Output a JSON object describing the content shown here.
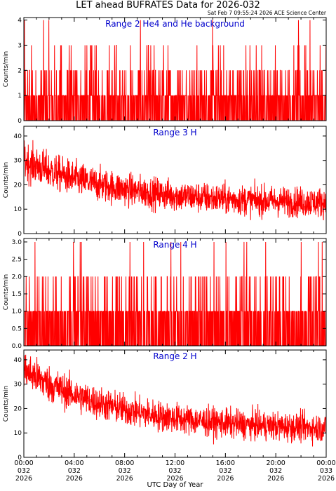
{
  "header": {
    "title": "LET ahead BUFRATES Data for 2026-032",
    "timestamp": "Sat Feb  7 09:55:24 2026 ACE Science Center"
  },
  "colors": {
    "series": "#ff0000",
    "panel_title": "#0000cc",
    "axes": "#000000"
  },
  "chart_data": [
    {
      "type": "line",
      "title": "Range 2 He4 and He background",
      "ylabel": "Counts/min",
      "ylim": [
        0,
        4.1
      ],
      "yticks": [
        {
          "v": 0,
          "label": "0"
        },
        {
          "v": 1,
          "label": "1"
        },
        {
          "v": 2,
          "label": "2"
        },
        {
          "v": 3,
          "label": "3"
        },
        {
          "v": 4,
          "label": "4"
        }
      ],
      "series": [
        {
          "color": "#ff0000",
          "profile": "discrete",
          "levels": [
            0,
            1,
            2,
            3,
            4
          ],
          "level_weights": [
            0.48,
            0.37,
            0.11,
            0.035,
            0.005
          ],
          "approx_mean_start": 0.8,
          "approx_mean_end": 0.8
        }
      ]
    },
    {
      "type": "line",
      "title": "Range 3 H",
      "ylabel": "Counts/min",
      "ylim": [
        0,
        44
      ],
      "yticks": [
        {
          "v": 0,
          "label": "0"
        },
        {
          "v": 10,
          "label": "10"
        },
        {
          "v": 20,
          "label": "20"
        },
        {
          "v": 30,
          "label": "30"
        },
        {
          "v": 40,
          "label": "40"
        }
      ],
      "series": [
        {
          "color": "#ff0000",
          "profile": "decay",
          "approx_mean_start": 30,
          "approx_mean_end": 12,
          "approx_noise": 4
        }
      ]
    },
    {
      "type": "line",
      "title": "Range 4 H",
      "ylabel": "Counts/min",
      "ylim": [
        0,
        3.1
      ],
      "yticks": [
        {
          "v": 0,
          "label": "0.0"
        },
        {
          "v": 0.5,
          "label": "0.5"
        },
        {
          "v": 1,
          "label": "1.0"
        },
        {
          "v": 1.5,
          "label": "1.5"
        },
        {
          "v": 2,
          "label": "2.0"
        },
        {
          "v": 2.5,
          "label": "2.5"
        },
        {
          "v": 3,
          "label": "3.0"
        }
      ],
      "series": [
        {
          "color": "#ff0000",
          "profile": "discrete",
          "levels": [
            0,
            1,
            2,
            3
          ],
          "level_weights": [
            0.55,
            0.36,
            0.08,
            0.01
          ],
          "approx_mean_start": 0.5,
          "approx_mean_end": 0.5
        }
      ]
    },
    {
      "type": "line",
      "title": "Range 2 H",
      "ylabel": "Counts/min",
      "ylim": [
        0,
        44
      ],
      "yticks": [
        {
          "v": 0,
          "label": "0"
        },
        {
          "v": 10,
          "label": "10"
        },
        {
          "v": 20,
          "label": "20"
        },
        {
          "v": 30,
          "label": "30"
        },
        {
          "v": 40,
          "label": "40"
        }
      ],
      "series": [
        {
          "color": "#ff0000",
          "profile": "decay",
          "approx_mean_start": 36,
          "approx_mean_end": 11,
          "approx_noise": 4
        }
      ]
    }
  ],
  "x_axis": {
    "label": "UTC Day of Year",
    "range_hours": [
      0,
      24
    ],
    "ticks": [
      {
        "hour": 0,
        "time": "00:00",
        "doy": "032",
        "year": "2026"
      },
      {
        "hour": 4,
        "time": "04:00",
        "doy": "032",
        "year": "2026"
      },
      {
        "hour": 8,
        "time": "08:00",
        "doy": "032",
        "year": "2026"
      },
      {
        "hour": 12,
        "time": "12:00",
        "doy": "032",
        "year": "2026"
      },
      {
        "hour": 16,
        "time": "16:00",
        "doy": "032",
        "year": "2026"
      },
      {
        "hour": 20,
        "time": "20:00",
        "doy": "032",
        "year": "2026"
      },
      {
        "hour": 24,
        "time": "00:00",
        "doy": "033",
        "year": "2026"
      }
    ]
  }
}
